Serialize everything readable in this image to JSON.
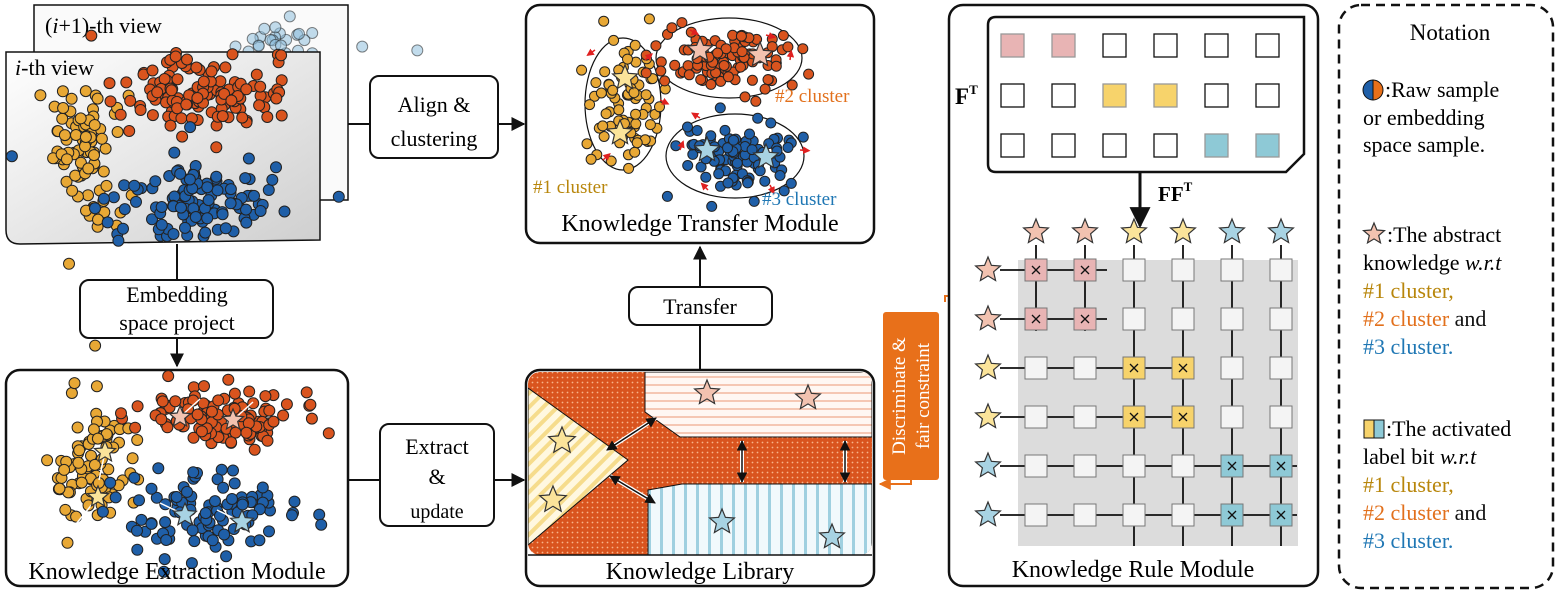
{
  "views": {
    "back_view_label": "(i+1)-th view",
    "front_view_label": "i-th view",
    "back_prefix": "(",
    "back_italic": "i",
    "back_suffix": "+1)-th view",
    "front_italic": "i",
    "front_suffix": "-th view"
  },
  "steps": {
    "align_line1": "Align &",
    "align_line2": "clustering",
    "embed_line1": "Embedding",
    "embed_line2": "space project",
    "extract_line1": "Extract",
    "extract_line2": "&",
    "extract_line3": "update",
    "transfer": "Transfer",
    "constraint_line1": "Discriminate &",
    "constraint_line2": "fair constraint"
  },
  "modules": {
    "transfer": "Knowledge Transfer Module",
    "extraction": "Knowledge Extraction Module",
    "library": "Knowledge Library",
    "rule": "Knowledge Rule Module"
  },
  "clusters": {
    "c1": "#1 cluster",
    "c2": "#2 cluster",
    "c3": "#3 cluster"
  },
  "matrix": {
    "f_label": "F",
    "f_sup": "T",
    "ff_label": "FF",
    "ff_sup": "T",
    "f_rows": [
      [
        "red",
        "red",
        "none",
        "none",
        "none",
        "none"
      ],
      [
        "none",
        "none",
        "yellow",
        "yellow",
        "none",
        "none"
      ],
      [
        "none",
        "none",
        "none",
        "none",
        "blue",
        "blue"
      ]
    ],
    "star_order": [
      "red",
      "red",
      "yellow",
      "yellow",
      "blue",
      "blue"
    ]
  },
  "notation": {
    "title": "Notation",
    "raw_line1": ":Raw sample",
    "raw_line2": "or embedding",
    "raw_line3": "space sample.",
    "abs_line1": ":The abstract",
    "abs_line2_a": "knowledge ",
    "abs_line2_b": "w.r.t",
    "act_line1": ":The activated",
    "act_line2_a": "label bit ",
    "act_line2_b": "w.r.t",
    "c1_comma": "#1 cluster,",
    "c2_and": " and",
    "c3_period": "#3 cluster."
  },
  "colors": {
    "orange": "#d9541e",
    "gold": "#e8a835",
    "blue": "#1f5fa8",
    "light_blue": "#8fc0dd",
    "star_red": "#f2c2b0",
    "star_yellow": "#fbe49a",
    "star_blue": "#a8d3e3",
    "cell_red": "#e8b4b4",
    "cell_yellow": "#f7d36b",
    "cell_blue": "#8ec9d6",
    "text_gold": "#b8860b",
    "text_orange": "#e2701c",
    "text_blue": "#1f77b4",
    "arrow_orange": "#e8701a"
  }
}
